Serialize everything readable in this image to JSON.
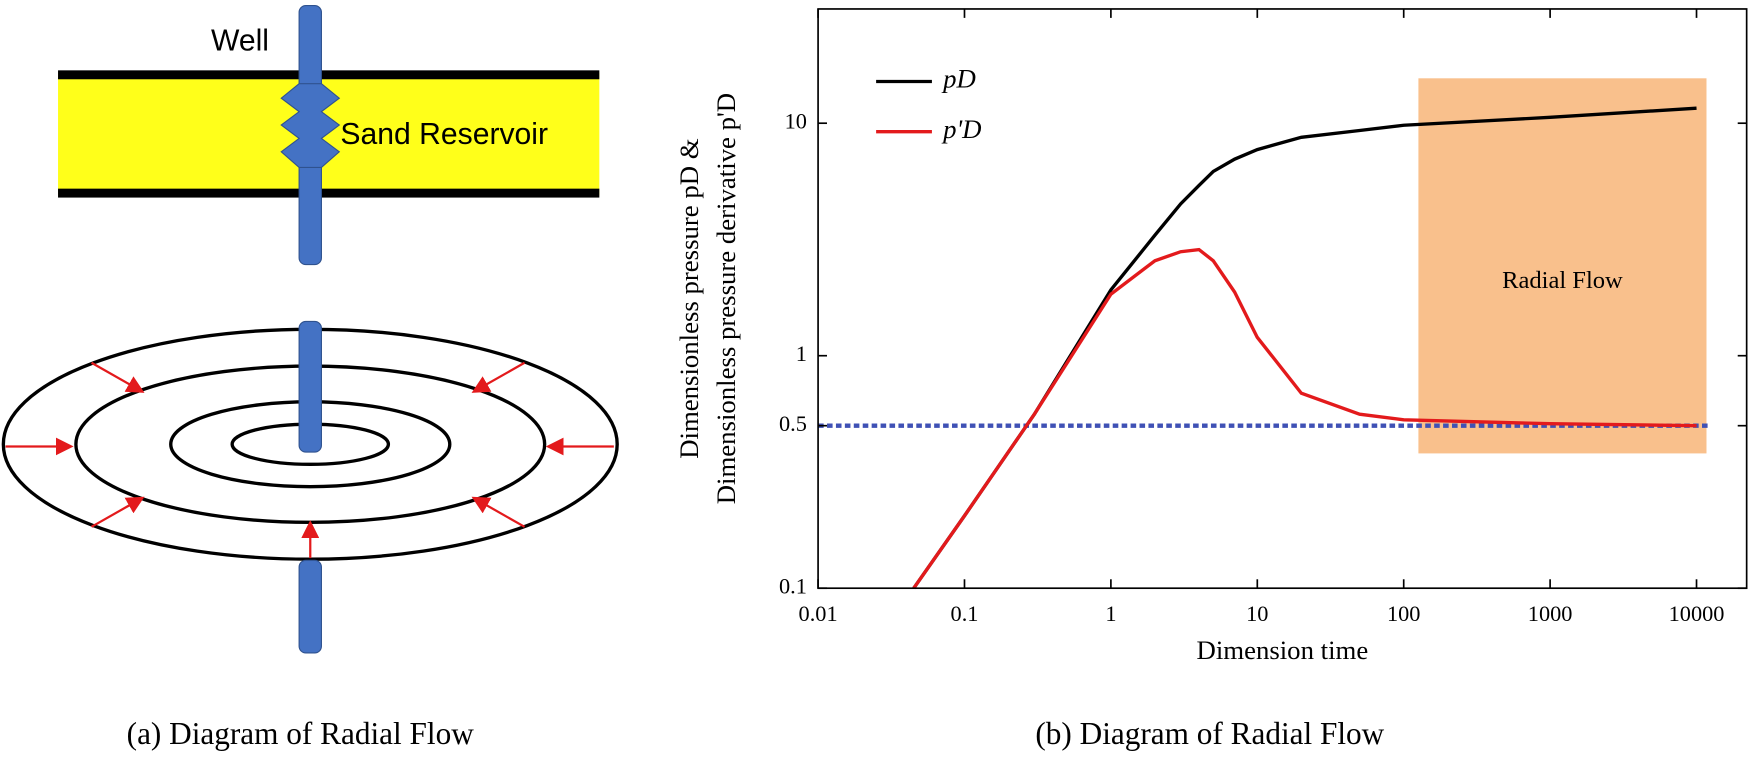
{
  "diagram": {
    "well_label": "Well",
    "reservoir_label": "Sand Reservoir"
  },
  "captions": [
    "(a) Diagram of Radial Flow",
    "(b) Diagram of Radial Flow"
  ],
  "chart_data": {
    "type": "line",
    "x_label": "Dimension time",
    "y_label": [
      "Dimensionless pressure pD &",
      "Dimensionless pressure derivative p'D"
    ],
    "log_x": true,
    "log_y": true,
    "xlim": [
      0.01,
      22000
    ],
    "ylim": [
      0.1,
      31
    ],
    "xticks": [
      0.01,
      0.1,
      1,
      10,
      100,
      1000,
      10000
    ],
    "yticks": [
      0.1,
      0.5,
      1,
      10
    ],
    "legend": "upper left",
    "x": [
      0.045,
      0.1,
      0.3,
      1,
      2,
      3,
      4,
      5,
      7,
      10,
      20,
      50,
      100,
      1000,
      10000
    ],
    "series": [
      {
        "name": "pD",
        "color": "#000000",
        "values": [
          0.1,
          0.205,
          0.56,
          1.92,
          3.3,
          4.5,
          5.4,
          6.2,
          7.0,
          7.7,
          8.7,
          9.3,
          9.8,
          10.6,
          11.6
        ]
      },
      {
        "name": "p'D",
        "color": "#e31a1c",
        "values": [
          0.1,
          0.205,
          0.56,
          1.84,
          2.56,
          2.8,
          2.86,
          2.56,
          1.88,
          1.2,
          0.69,
          0.56,
          0.53,
          0.51,
          0.5
        ]
      }
    ],
    "reference_line": {
      "y": 0.5,
      "x": [
        0.01,
        12000
      ],
      "color": "#3f51b5"
    },
    "region": {
      "label": "Radial Flow",
      "x": [
        126,
        11700
      ],
      "y": [
        0.38,
        15.6
      ],
      "color": "#f9c08c"
    }
  }
}
